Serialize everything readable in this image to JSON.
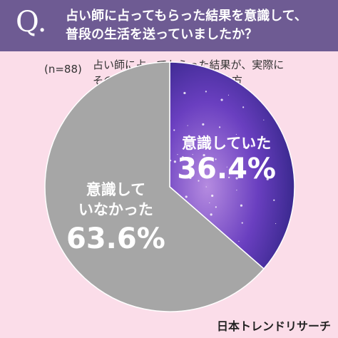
{
  "chart_data": {
    "type": "pie",
    "question_mark": "Q.",
    "title": "占い師に占ってもらった結果を意識して、\n普段の生活を送っていましたか？",
    "sample_size": "(n=88)",
    "subtitle": "占い師に占ってもらった結果が、実際に\nその通りになった経験がある方",
    "categories": [
      "意識していた",
      "意識して\nいなかった"
    ],
    "values": [
      36.4,
      63.6
    ],
    "value_labels": [
      "36.4%",
      "63.6%"
    ],
    "colors": [
      "#5b3db5",
      "#a6a6a6"
    ],
    "source": "日本トレンドリサーチ"
  }
}
